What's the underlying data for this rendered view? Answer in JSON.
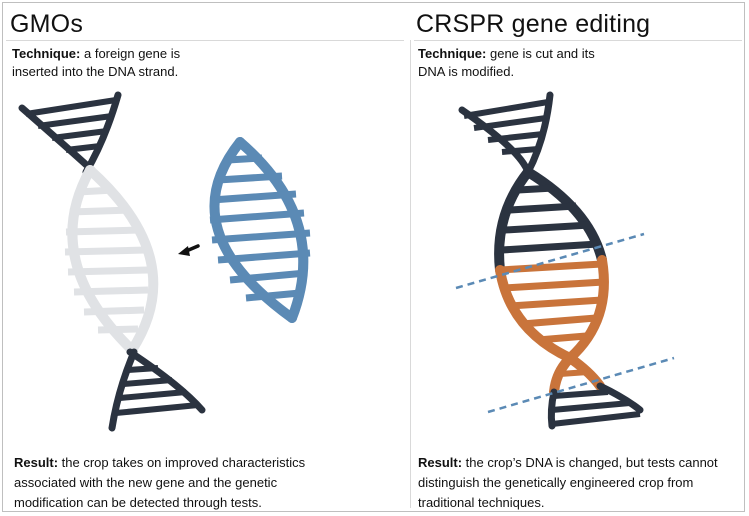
{
  "left_panel": {
    "title": "GMOs",
    "technique": {
      "label": "Technique:",
      "line1": " a foreign gene is",
      "line2": "inserted into the DNA strand."
    },
    "result": {
      "label": "Result:",
      "line1": " the crop takes on improved characteristics",
      "line2": "associated with the new gene and the genetic",
      "line3": "modification can be detected through tests."
    }
  },
  "right_panel": {
    "title": "CRSPR gene editing",
    "technique": {
      "label": "Technique:",
      "line1": " gene is cut and its",
      "line2": "DNA is modified."
    },
    "result": {
      "label": "Result:",
      "line1": " the crop’s DNA is changed, but tests cannot",
      "line2": "distinguish the genetically engineered crop from",
      "line3": "traditional techniques."
    }
  },
  "colors": {
    "dark_strand": "#2b3340",
    "light_strand": "#e0e2e5",
    "inserted_gene": "#5b8ab5",
    "edited_segment": "#c9743b",
    "cut_line": "#5b8ab5",
    "arrow": "#111111"
  }
}
